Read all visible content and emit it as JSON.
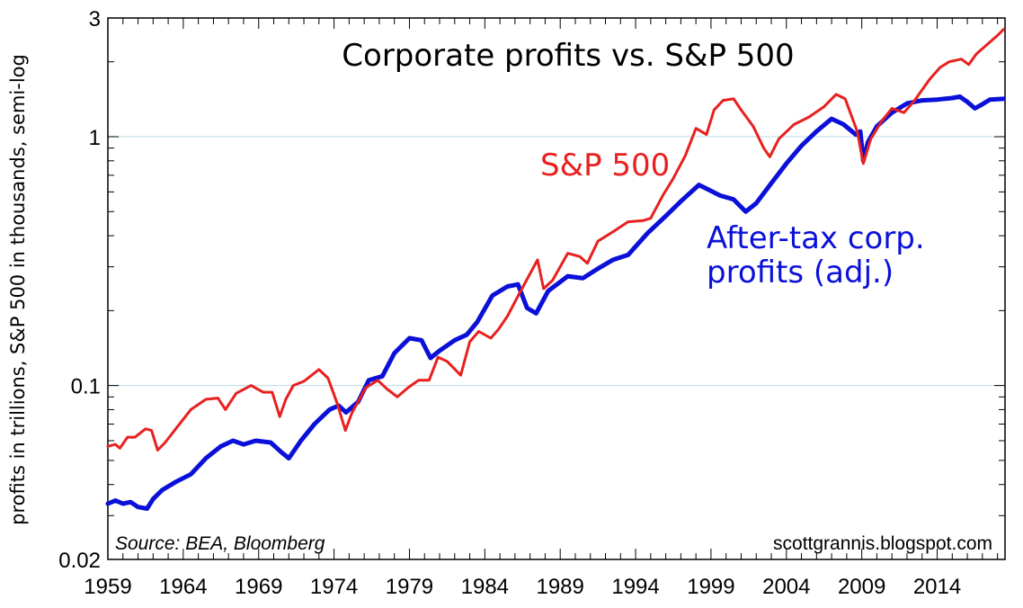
{
  "chart_data": {
    "type": "line",
    "title": "Corporate profits vs. S&P 500",
    "ylabel": "profits in trillions, S&P 500 in thousands, semi-log",
    "y_scale": "log",
    "ylim": [
      0.02,
      3
    ],
    "xlim": [
      1959,
      2018.5
    ],
    "y_ticks": [
      {
        "value": 3,
        "label": "3"
      },
      {
        "value": 1,
        "label": "1"
      },
      {
        "value": 0.1,
        "label": "0.1"
      },
      {
        "value": 0.02,
        "label": "0.02"
      }
    ],
    "x_ticks": [
      1959,
      1964,
      1969,
      1974,
      1979,
      1984,
      1989,
      1994,
      1999,
      2004,
      2009,
      2014
    ],
    "x_tick_labels": [
      "1959",
      "1964",
      "1969",
      "1974",
      "1979",
      "1984",
      "1989",
      "1994",
      "1999",
      "2004",
      "2009",
      "2014"
    ],
    "gridlines": [
      1,
      0.1
    ],
    "series": [
      {
        "name": "S&P 500",
        "color": "#e8201f",
        "points": [
          [
            1959.0,
            0.057
          ],
          [
            1959.5,
            0.058
          ],
          [
            1959.8,
            0.056
          ],
          [
            1960.3,
            0.062
          ],
          [
            1960.8,
            0.062
          ],
          [
            1961.5,
            0.067
          ],
          [
            1961.9,
            0.066
          ],
          [
            1962.3,
            0.055
          ],
          [
            1962.8,
            0.059
          ],
          [
            1963.5,
            0.067
          ],
          [
            1964.5,
            0.08
          ],
          [
            1965.5,
            0.088
          ],
          [
            1966.3,
            0.089
          ],
          [
            1966.8,
            0.08
          ],
          [
            1967.5,
            0.093
          ],
          [
            1968.5,
            0.1
          ],
          [
            1969.3,
            0.094
          ],
          [
            1969.9,
            0.094
          ],
          [
            1970.4,
            0.075
          ],
          [
            1970.8,
            0.088
          ],
          [
            1971.3,
            0.1
          ],
          [
            1972.0,
            0.104
          ],
          [
            1973.0,
            0.116
          ],
          [
            1973.6,
            0.107
          ],
          [
            1974.2,
            0.085
          ],
          [
            1974.75,
            0.066
          ],
          [
            1975.2,
            0.078
          ],
          [
            1975.6,
            0.086
          ],
          [
            1976.1,
            0.098
          ],
          [
            1976.9,
            0.105
          ],
          [
            1977.5,
            0.097
          ],
          [
            1978.2,
            0.09
          ],
          [
            1978.9,
            0.098
          ],
          [
            1979.6,
            0.105
          ],
          [
            1980.3,
            0.105
          ],
          [
            1980.9,
            0.13
          ],
          [
            1981.5,
            0.125
          ],
          [
            1982.4,
            0.11
          ],
          [
            1983.0,
            0.15
          ],
          [
            1983.6,
            0.165
          ],
          [
            1984.4,
            0.155
          ],
          [
            1984.9,
            0.168
          ],
          [
            1985.5,
            0.19
          ],
          [
            1986.3,
            0.235
          ],
          [
            1987.5,
            0.32
          ],
          [
            1987.9,
            0.245
          ],
          [
            1988.5,
            0.265
          ],
          [
            1989.5,
            0.34
          ],
          [
            1990.3,
            0.33
          ],
          [
            1990.8,
            0.31
          ],
          [
            1991.5,
            0.38
          ],
          [
            1992.5,
            0.415
          ],
          [
            1993.5,
            0.455
          ],
          [
            1994.5,
            0.46
          ],
          [
            1995.0,
            0.47
          ],
          [
            1995.8,
            0.58
          ],
          [
            1996.5,
            0.68
          ],
          [
            1997.3,
            0.84
          ],
          [
            1998.0,
            1.08
          ],
          [
            1998.7,
            1.02
          ],
          [
            1999.2,
            1.28
          ],
          [
            1999.8,
            1.4
          ],
          [
            2000.5,
            1.42
          ],
          [
            2001.0,
            1.28
          ],
          [
            2001.8,
            1.1
          ],
          [
            2002.5,
            0.9
          ],
          [
            2002.9,
            0.83
          ],
          [
            2003.5,
            0.98
          ],
          [
            2004.5,
            1.12
          ],
          [
            2005.5,
            1.2
          ],
          [
            2006.5,
            1.32
          ],
          [
            2007.3,
            1.48
          ],
          [
            2007.9,
            1.42
          ],
          [
            2008.7,
            1.05
          ],
          [
            2009.1,
            0.78
          ],
          [
            2009.6,
            0.98
          ],
          [
            2010.3,
            1.15
          ],
          [
            2011.0,
            1.3
          ],
          [
            2011.8,
            1.25
          ],
          [
            2012.5,
            1.4
          ],
          [
            2013.5,
            1.7
          ],
          [
            2014.2,
            1.9
          ],
          [
            2014.8,
            2.0
          ],
          [
            2015.6,
            2.05
          ],
          [
            2016.1,
            1.95
          ],
          [
            2016.6,
            2.15
          ],
          [
            2017.5,
            2.4
          ],
          [
            2018.0,
            2.55
          ],
          [
            2018.4,
            2.7
          ]
        ]
      },
      {
        "name": "After-tax corp. profits (adj.)",
        "color": "#0a10d8",
        "points": [
          [
            1959.0,
            0.0335
          ],
          [
            1959.5,
            0.0345
          ],
          [
            1960.0,
            0.0335
          ],
          [
            1960.5,
            0.034
          ],
          [
            1961.0,
            0.0325
          ],
          [
            1961.6,
            0.032
          ],
          [
            1962.0,
            0.035
          ],
          [
            1962.6,
            0.038
          ],
          [
            1963.5,
            0.041
          ],
          [
            1964.5,
            0.044
          ],
          [
            1965.5,
            0.051
          ],
          [
            1966.5,
            0.057
          ],
          [
            1967.3,
            0.06
          ],
          [
            1968.0,
            0.058
          ],
          [
            1968.8,
            0.06
          ],
          [
            1969.8,
            0.059
          ],
          [
            1970.5,
            0.054
          ],
          [
            1971.0,
            0.051
          ],
          [
            1971.8,
            0.06
          ],
          [
            1972.7,
            0.07
          ],
          [
            1973.7,
            0.08
          ],
          [
            1974.3,
            0.083
          ],
          [
            1974.8,
            0.078
          ],
          [
            1975.6,
            0.086
          ],
          [
            1976.3,
            0.105
          ],
          [
            1977.2,
            0.109
          ],
          [
            1978.0,
            0.135
          ],
          [
            1979.0,
            0.155
          ],
          [
            1979.8,
            0.152
          ],
          [
            1980.4,
            0.129
          ],
          [
            1981.0,
            0.138
          ],
          [
            1982.0,
            0.152
          ],
          [
            1982.8,
            0.16
          ],
          [
            1983.5,
            0.18
          ],
          [
            1984.5,
            0.23
          ],
          [
            1985.5,
            0.25
          ],
          [
            1986.2,
            0.255
          ],
          [
            1986.8,
            0.205
          ],
          [
            1987.4,
            0.195
          ],
          [
            1988.2,
            0.24
          ],
          [
            1989.5,
            0.275
          ],
          [
            1990.5,
            0.27
          ],
          [
            1991.5,
            0.295
          ],
          [
            1992.5,
            0.32
          ],
          [
            1993.5,
            0.335
          ],
          [
            1994.8,
            0.41
          ],
          [
            1996.0,
            0.48
          ],
          [
            1997.0,
            0.55
          ],
          [
            1998.2,
            0.64
          ],
          [
            1998.9,
            0.61
          ],
          [
            1999.6,
            0.58
          ],
          [
            2000.5,
            0.56
          ],
          [
            2001.3,
            0.5
          ],
          [
            2002.0,
            0.54
          ],
          [
            2003.0,
            0.65
          ],
          [
            2004.0,
            0.78
          ],
          [
            2005.0,
            0.92
          ],
          [
            2006.0,
            1.05
          ],
          [
            2007.0,
            1.18
          ],
          [
            2007.8,
            1.12
          ],
          [
            2008.6,
            1.02
          ],
          [
            2008.9,
            1.05
          ],
          [
            2009.1,
            0.8
          ],
          [
            2009.4,
            0.95
          ],
          [
            2010.0,
            1.1
          ],
          [
            2011.0,
            1.25
          ],
          [
            2012.0,
            1.36
          ],
          [
            2013.0,
            1.4
          ],
          [
            2014.0,
            1.41
          ],
          [
            2015.0,
            1.43
          ],
          [
            2015.5,
            1.45
          ],
          [
            2016.0,
            1.38
          ],
          [
            2016.5,
            1.3
          ],
          [
            2017.0,
            1.35
          ],
          [
            2017.5,
            1.41
          ],
          [
            2018.4,
            1.42
          ]
        ]
      }
    ],
    "annotations": [
      {
        "text": "S&P 500",
        "series": 0
      },
      {
        "text": "After-tax corp.",
        "series": 1
      },
      {
        "text": "profits (adj.)",
        "series": 1
      }
    ],
    "source": "Source: BEA, Bloomberg",
    "credit": "scottgrannis.blogspot.com",
    "legend": "none"
  }
}
